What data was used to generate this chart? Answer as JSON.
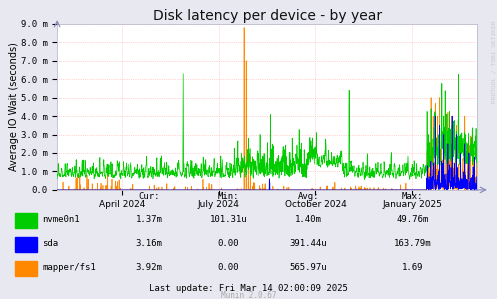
{
  "title": "Disk latency per device - by year",
  "ylabel": "Average IO Wait (seconds)",
  "ylim": [
    0,
    0.009
  ],
  "ytick_labels": [
    "0.0",
    "1.0 m",
    "2.0 m",
    "3.0 m",
    "4.0 m",
    "5.0 m",
    "6.0 m",
    "7.0 m",
    "8.0 m",
    "9.0 m"
  ],
  "xtick_labels": [
    "April 2024",
    "July 2024",
    "October 2024",
    "January 2025"
  ],
  "xtick_positions": [
    0.154,
    0.385,
    0.615,
    0.846
  ],
  "bg_color": "#e8e8f0",
  "plot_bg_color": "#ffffff",
  "grid_color": "#ffaaaa",
  "legend_entries": [
    {
      "label": "nvme0n1",
      "color": "#00cc00"
    },
    {
      "label": "sda",
      "color": "#0000ff"
    },
    {
      "label": "mapper/fs1",
      "color": "#ff8800"
    }
  ],
  "table": {
    "headers": [
      "",
      "Cur:",
      "Min:",
      "Avg:",
      "Max:"
    ],
    "rows": [
      [
        "nvme0n1",
        "1.37m",
        "101.31u",
        "1.40m",
        "49.76m"
      ],
      [
        "sda",
        "3.16m",
        "0.00",
        "391.44u",
        "163.79m"
      ],
      [
        "mapper/fs1",
        "3.92m",
        "0.00",
        "565.97u",
        "1.69"
      ]
    ]
  },
  "footer": "Last update: Fri Mar 14 02:00:09 2025",
  "munin_version": "Munin 2.0.67",
  "watermark": "RRDTOOL / TOBI OETIKER",
  "title_fontsize": 10,
  "axis_label_fontsize": 7,
  "tick_fontsize": 6.5,
  "table_fontsize": 6.5
}
